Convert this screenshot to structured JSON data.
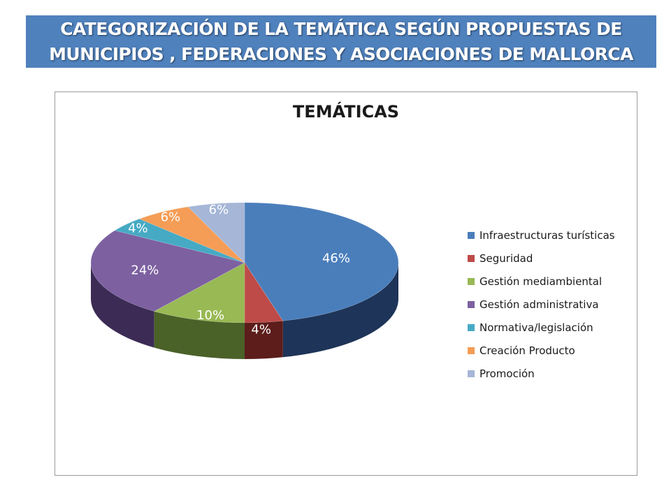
{
  "header": {
    "title": "CATEGORIZACIÓN DE LA TEMÁTICA SEGÚN PROPUESTAS DE MUNICIPIOS , FEDERACIONES Y ASOCIACIONES  DE MALLORCA"
  },
  "chart_data": {
    "type": "pie",
    "title": "TEMÁTICAS",
    "legend_position": "right",
    "three_d": true,
    "categories": [
      "Infraestructuras  turísticas",
      "Seguridad",
      "Gestión mediambiental",
      "Gestión administrativa",
      "Normativa/legislación",
      "Creación  Producto",
      "Promoción"
    ],
    "values": [
      46,
      4,
      10,
      24,
      4,
      6,
      6
    ],
    "labels": [
      "46%",
      "4%",
      "10%",
      "24%",
      "4%",
      "6%",
      "6%"
    ],
    "colors": [
      "#4a7ebb",
      "#be4b48",
      "#98b954",
      "#7d60a0",
      "#46aac4",
      "#f59d56",
      "#a5b6d7"
    ],
    "side_colors": [
      "#1e3458",
      "#5c1d1b",
      "#4a6128",
      "#3b2b55",
      "#1d5a6a",
      "#8a4b18",
      "#57688b"
    ]
  }
}
